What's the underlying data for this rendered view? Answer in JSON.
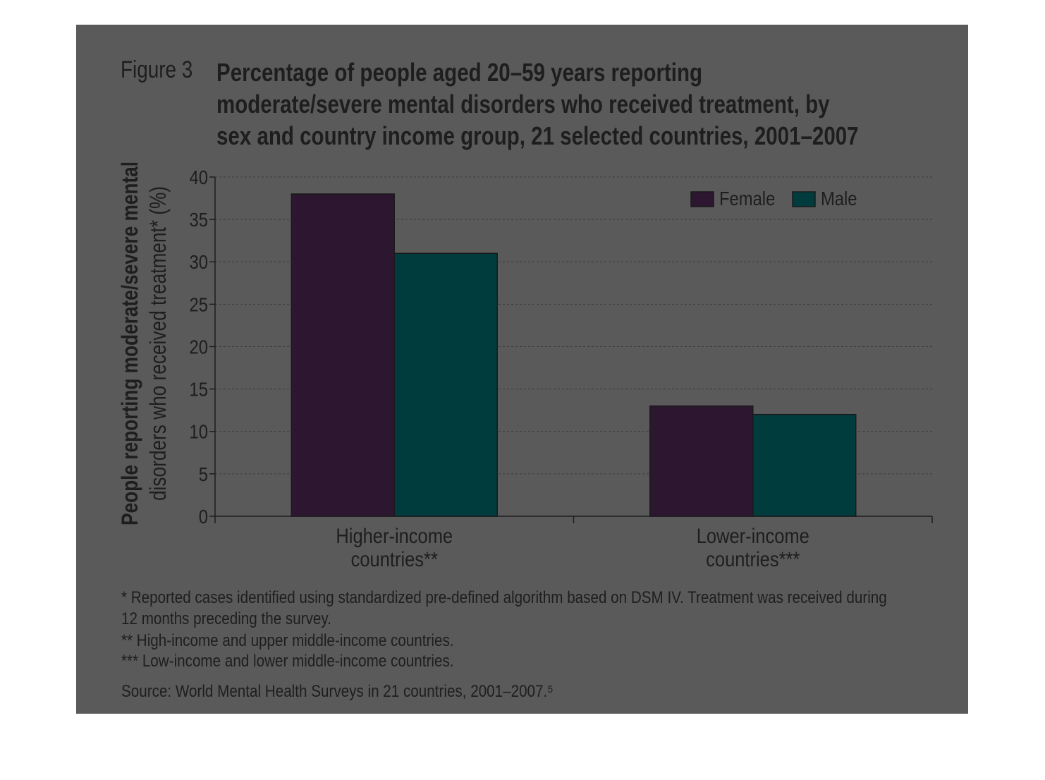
{
  "figure": {
    "label": "Figure 3",
    "title": "Percentage of people aged 20–59 years reporting\nmoderate/severe mental disorders who received treatment, by\nsex and country income group, 21 selected countries, 2001–2007"
  },
  "chart_data": {
    "type": "bar",
    "categories": [
      "Higher-income\ncountries**",
      "Lower-income\ncountries***"
    ],
    "series": [
      {
        "name": "Female",
        "values": [
          38,
          13
        ],
        "color": "#2c1630"
      },
      {
        "name": "Male",
        "values": [
          31,
          12
        ],
        "color": "#003c3e"
      }
    ],
    "ylabel": "People reporting moderate/severe mental\ndisorders who received treatment* (%)",
    "ylim": [
      0,
      40
    ],
    "yticks": [
      0,
      5,
      10,
      15,
      20,
      25,
      30,
      35,
      40
    ],
    "grid": true,
    "legend_position": "top-right"
  },
  "notes": {
    "note1": "* Reported cases identified using standardized pre-defined algorithm based on DSM IV. Treatment was received during\n  12 months preceding the survey.",
    "note2": "** High-income and upper middle-income countries.",
    "note3": "*** Low-income and lower middle-income countries.",
    "source": "Source: World Mental Health Surveys in 21 countries, 2001–2007.⁵"
  }
}
